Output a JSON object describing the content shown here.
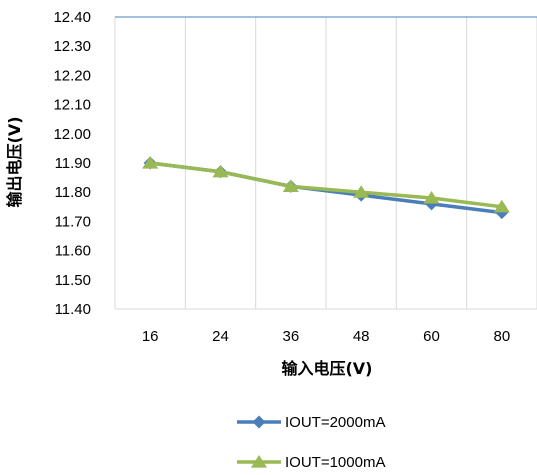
{
  "chart_data": {
    "type": "line",
    "title": "",
    "xlabel": "输入电压(V)",
    "ylabel": "输出电压(V)",
    "categories": [
      "16",
      "24",
      "36",
      "48",
      "60",
      "80"
    ],
    "ylim": [
      11.4,
      12.4
    ],
    "yticks": [
      "11.40",
      "11.50",
      "11.60",
      "11.70",
      "11.80",
      "11.90",
      "12.00",
      "12.10",
      "12.20",
      "12.30",
      "12.40"
    ],
    "grid": "vertical",
    "legend_position": "bottom",
    "series": [
      {
        "name": "IOUT=2000mA",
        "values": [
          11.9,
          11.87,
          11.82,
          11.79,
          11.76,
          11.73
        ],
        "color": "#4a7ebb",
        "marker": "diamond"
      },
      {
        "name": "IOUT=1000mA",
        "values": [
          11.9,
          11.87,
          11.82,
          11.8,
          11.78,
          11.75
        ],
        "color": "#98b954",
        "marker": "triangle"
      }
    ]
  }
}
